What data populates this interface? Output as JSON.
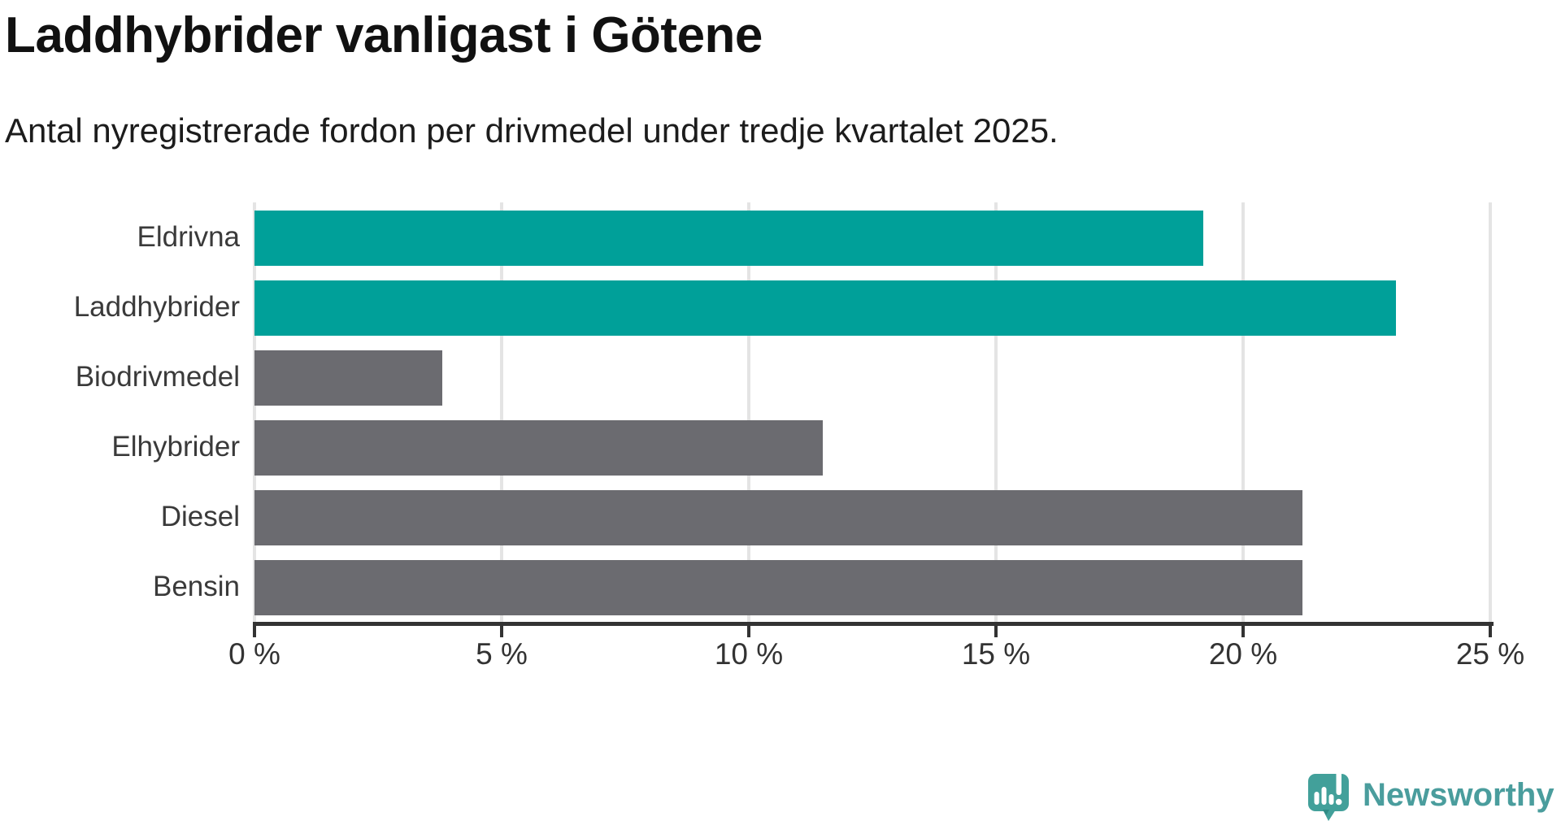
{
  "header": {
    "title": "Laddhybrider vanligast i Götene",
    "subtitle": "Antal nyregistrerade fordon per drivmedel under tredje kvartalet 2025."
  },
  "chart_data": {
    "type": "bar",
    "orientation": "horizontal",
    "title": "Laddhybrider vanligast i Götene",
    "subtitle": "Antal nyregistrerade fordon per drivmedel under tredje kvartalet 2025.",
    "categories": [
      "Eldrivna",
      "Laddhybrider",
      "Biodrivmedel",
      "Elhybrider",
      "Diesel",
      "Bensin"
    ],
    "values": [
      19.2,
      23.1,
      3.8,
      11.5,
      21.2,
      21.2
    ],
    "unit": "%",
    "xlabel": "",
    "ylabel": "",
    "xlim": [
      0,
      25
    ],
    "x_ticks": [
      0,
      5,
      10,
      15,
      20,
      25
    ],
    "x_tick_labels": [
      "0 %",
      "5 %",
      "10 %",
      "15 %",
      "20 %",
      "25 %"
    ],
    "bar_colors": [
      "#00a099",
      "#00a099",
      "#6b6b70",
      "#6b6b70",
      "#6b6b70",
      "#6b6b70"
    ],
    "highlight_color": "#00a099",
    "default_color": "#6b6b70",
    "grid": true,
    "gridline_color": "#e4e4e4",
    "axis_color": "#333333",
    "legend": "none"
  },
  "branding": {
    "name": "Newsworthy",
    "text_color": "#4a9d9d",
    "icon_color": "#42a09a",
    "icon_fold_color": "#2f8b85",
    "icon": "newsworthy-logo-icon"
  }
}
